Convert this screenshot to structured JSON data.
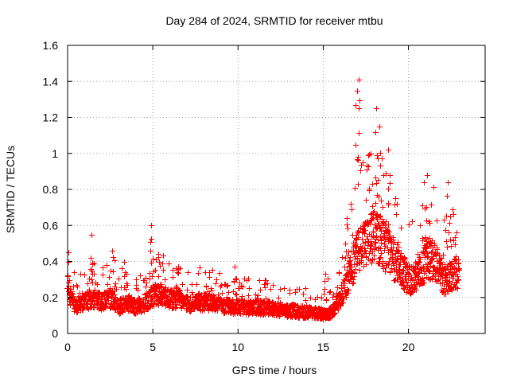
{
  "chart_data": {
    "type": "scatter",
    "title": "Day 284 of 2024, SRMTID for receiver mtbu",
    "xlabel": "GPS time / hours",
    "ylabel": "SRMTID / TECUs",
    "xlim": [
      0,
      24.5
    ],
    "ylim": [
      0,
      1.6
    ],
    "xticks": [
      0,
      5,
      10,
      15,
      20
    ],
    "xtick_labels": [
      "0",
      "5",
      "10",
      "15",
      "20"
    ],
    "yticks": [
      0,
      0.2,
      0.4,
      0.6,
      0.8,
      1.0,
      1.2,
      1.4,
      1.6
    ],
    "ytick_labels": [
      "0",
      "0.2",
      "0.4",
      "0.6",
      "0.8",
      "1",
      "1.2",
      "1.4",
      "1.6"
    ],
    "grid": true,
    "marker": "+",
    "color": "#ff0000",
    "series": [
      {
        "name": "SRMTID",
        "profile_x": [
          0,
          0.3,
          0.6,
          1.0,
          1.4,
          2.0,
          2.5,
          3.0,
          3.5,
          4.0,
          4.5,
          5.0,
          5.5,
          6.0,
          6.5,
          7.0,
          8.0,
          9.0,
          10.0,
          11.0,
          12.0,
          13.0,
          14.0,
          15.0,
          15.5,
          16.0,
          16.5,
          17.0,
          17.5,
          18.0,
          18.5,
          19.0,
          19.5,
          20.0,
          20.5,
          21.0,
          21.5,
          22.0,
          22.5,
          23.0
        ],
        "profile_median": [
          0.26,
          0.17,
          0.16,
          0.18,
          0.2,
          0.18,
          0.2,
          0.15,
          0.17,
          0.15,
          0.17,
          0.21,
          0.22,
          0.19,
          0.2,
          0.17,
          0.18,
          0.16,
          0.15,
          0.15,
          0.14,
          0.13,
          0.12,
          0.11,
          0.12,
          0.2,
          0.32,
          0.45,
          0.5,
          0.55,
          0.5,
          0.42,
          0.38,
          0.3,
          0.32,
          0.4,
          0.42,
          0.3,
          0.32,
          0.35
        ],
        "peaks": [
          {
            "x": 0.05,
            "y": 0.4
          },
          {
            "x": 1.4,
            "y": 0.55
          },
          {
            "x": 2.6,
            "y": 0.46
          },
          {
            "x": 3.3,
            "y": 0.4
          },
          {
            "x": 4.9,
            "y": 0.6
          },
          {
            "x": 5.3,
            "y": 0.44
          },
          {
            "x": 6.5,
            "y": 0.37
          },
          {
            "x": 8.3,
            "y": 0.34
          },
          {
            "x": 9.8,
            "y": 0.37
          },
          {
            "x": 15.1,
            "y": 0.33
          },
          {
            "x": 16.4,
            "y": 0.64
          },
          {
            "x": 17.0,
            "y": 1.35
          },
          {
            "x": 17.1,
            "y": 1.41
          },
          {
            "x": 17.8,
            "y": 1.0
          },
          {
            "x": 18.1,
            "y": 1.25
          },
          {
            "x": 18.3,
            "y": 1.15
          },
          {
            "x": 18.8,
            "y": 1.02
          },
          {
            "x": 19.3,
            "y": 0.72
          },
          {
            "x": 20.9,
            "y": 0.84
          },
          {
            "x": 21.1,
            "y": 0.88
          },
          {
            "x": 22.3,
            "y": 0.84
          },
          {
            "x": 22.6,
            "y": 0.69
          }
        ]
      }
    ]
  }
}
